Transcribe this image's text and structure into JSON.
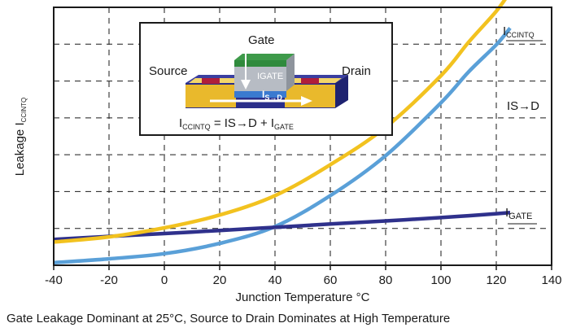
{
  "chart_data": {
    "type": "line",
    "x": [
      -40,
      -20,
      0,
      20,
      40,
      60,
      80,
      100,
      110,
      120,
      125
    ],
    "xlim": [
      -40,
      140
    ],
    "xticks": [
      "-40",
      "-20",
      "0",
      "20",
      "40",
      "60",
      "80",
      "100",
      "120",
      "140"
    ],
    "xlabel": "Junction Temperature °C",
    "ylabel": {
      "main": "Leakage I",
      "sub": "CCINTQ"
    },
    "ylim": [
      0,
      10
    ],
    "y_tick_labels": false,
    "grid": "dashed",
    "series": [
      {
        "name": "ICCINTQ",
        "label_main": "I",
        "label_sub": "CCINTQ",
        "color": "#f2c21f",
        "values": [
          0.9,
          1.1,
          1.45,
          1.95,
          2.7,
          3.9,
          5.35,
          7.35,
          8.65,
          9.85,
          10.6
        ]
      },
      {
        "name": "IS→D",
        "label_main": "IS→D",
        "label_sub": "",
        "color": "#5aa0d8",
        "values": [
          0.1,
          0.25,
          0.45,
          0.85,
          1.5,
          2.7,
          4.25,
          6.3,
          7.5,
          8.55,
          9.2
        ]
      },
      {
        "name": "IGATE",
        "label_main": "I",
        "label_sub": "GATE",
        "color": "#2f318c",
        "values": [
          1.0,
          1.12,
          1.23,
          1.35,
          1.47,
          1.6,
          1.72,
          1.85,
          1.92,
          2.0,
          2.04
        ]
      }
    ],
    "inset": {
      "gate": "Gate",
      "source": "Source",
      "drain": "Drain",
      "igate": "IGATE",
      "isd": {
        "main": "I",
        "sub": "S→D"
      },
      "equation": {
        "a": "I",
        "a_sub": "CCINTQ",
        "b": " = IS→D + I",
        "b_sub": "GATE"
      }
    },
    "caption": "Gate Leakage Dominant at 25°C, Source to Drain Dominates at High Temperature"
  },
  "colors": {
    "frame": "#1a1a1a",
    "grid": "#1a1a1a",
    "gate_top": "#3e9a4a",
    "substrate": "#2a2e8a",
    "diffusion": "#e9b92c",
    "contact": "#b01e3a"
  }
}
